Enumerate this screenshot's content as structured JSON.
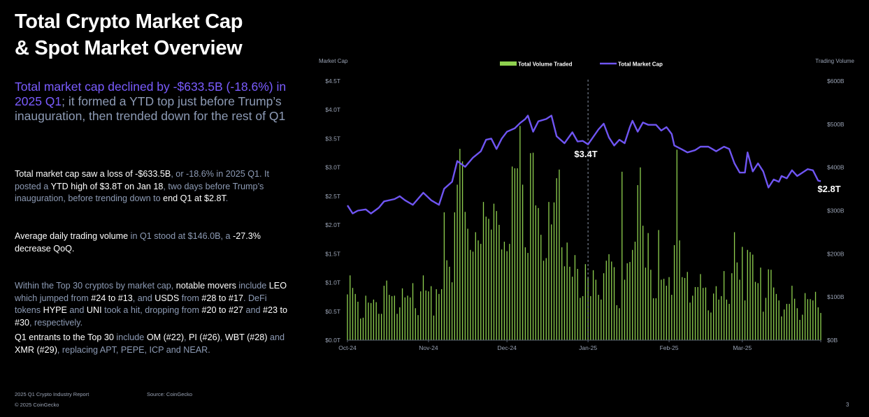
{
  "title_lines": [
    "Total Crypto Market Cap",
    "& Spot Market Overview"
  ],
  "subtitle": [
    {
      "t": "Total market cap declined by -$633.5B (-18.6%) in 2025 Q1",
      "hl": true
    },
    {
      "t": "; it formed a YTD top just before Trump’s inauguration, then trended down for the rest of Q1",
      "hl": false
    }
  ],
  "paragraphs": [
    [
      {
        "t": "Total market cap saw a loss of -$633.5B",
        "hl": true
      },
      {
        "t": ", or -18.6% in 2025 Q1. It posted a ",
        "hl": false
      },
      {
        "t": "YTD high of $3.8T on Jan 18",
        "hl": true
      },
      {
        "t": ", two days before Trump’s inauguration, before trending down to ",
        "hl": false
      },
      {
        "t": "end Q1 at $2.8T",
        "hl": true
      },
      {
        "t": ".",
        "hl": false
      }
    ],
    [
      {
        "t": "Average daily trading volume",
        "hl": true
      },
      {
        "t": " in Q1 stood at $146.0B, a ",
        "hl": false
      },
      {
        "t": "-27.3% decrease QoQ.",
        "hl": true
      }
    ],
    [
      {
        "t": "Within the Top 30 cryptos by market cap, ",
        "hl": false
      },
      {
        "t": "notable movers",
        "hl": true
      },
      {
        "t": " include ",
        "hl": false
      },
      {
        "t": "LEO",
        "hl": true
      },
      {
        "t": " which jumped from ",
        "hl": false
      },
      {
        "t": "#24 to #13",
        "hl": true
      },
      {
        "t": ", and ",
        "hl": false
      },
      {
        "t": "USDS",
        "hl": true
      },
      {
        "t": " from ",
        "hl": false
      },
      {
        "t": "#28 to #17",
        "hl": true
      },
      {
        "t": ". DeFi tokens ",
        "hl": false
      },
      {
        "t": "HYPE",
        "hl": true
      },
      {
        "t": " and ",
        "hl": false
      },
      {
        "t": "UNI",
        "hl": true
      },
      {
        "t": " took a hit, dropping from ",
        "hl": false
      },
      {
        "t": "#20 to #27",
        "hl": true
      },
      {
        "t": " and ",
        "hl": false
      },
      {
        "t": "#23 to #30",
        "hl": true
      },
      {
        "t": ", respectively.",
        "hl": false
      }
    ],
    [
      {
        "t": "Q1 entrants to the Top 30",
        "hl": true
      },
      {
        "t": " include ",
        "hl": false
      },
      {
        "t": "OM (#22)",
        "hl": true
      },
      {
        "t": ", ",
        "hl": false
      },
      {
        "t": "PI (#26)",
        "hl": true
      },
      {
        "t": ", ",
        "hl": false
      },
      {
        "t": "WBT (#28)",
        "hl": true
      },
      {
        "t": " and ",
        "hl": false
      },
      {
        "t": "XMR (#29)",
        "hl": true
      },
      {
        "t": ", replacing APT, PEPE, ICP and NEAR.",
        "hl": false
      }
    ]
  ],
  "footer": {
    "report": "2025 Q1 Crypto Industry Report",
    "source": "Source: CoinGecko",
    "copyright": "© 2025 CoinGecko",
    "page": "3"
  },
  "colors": {
    "background": "#000000",
    "volume": "#8fd14f",
    "market_cap": "#6f55f2",
    "accent_text": "#7a5cff",
    "muted_text": "#8d9bb5"
  },
  "chart_data": {
    "type": "bar+line",
    "y_left_label": "Market Cap",
    "y_right_label": "Trading Volume",
    "y_left_ticks": [
      "$0.0T",
      "$0.5T",
      "$1.0T",
      "$1.5T",
      "$2.0T",
      "$2.5T",
      "$3.0T",
      "$3.5T",
      "$4.0T",
      "$4.5T"
    ],
    "y_right_ticks": [
      "$0B",
      "$100B",
      "$200B",
      "$300B",
      "$400B",
      "$500B",
      "$600B"
    ],
    "ylim_left": [
      0,
      4.5
    ],
    "ylim_right": [
      0,
      600
    ],
    "x_ticks": [
      {
        "label": "Oct-24",
        "date": "2024-10-01"
      },
      {
        "label": "Nov-24",
        "date": "2024-11-01"
      },
      {
        "label": "Dec-24",
        "date": "2024-12-01"
      },
      {
        "label": "Jan-25",
        "date": "2025-01-01"
      },
      {
        "label": "Feb-25",
        "date": "2025-02-01"
      },
      {
        "label": "Mar-25",
        "date": "2025-03-01"
      }
    ],
    "x_range": [
      "2024-10-01",
      "2025-03-31"
    ],
    "legend": [
      "Total Volume Traded",
      "Total Market Cap"
    ],
    "legend_position": "top-center",
    "grid": false,
    "reference_line": {
      "date": "2025-01-01",
      "style": "dashed"
    },
    "annotations": [
      {
        "text": "$3.4T",
        "date": "2025-01-01",
        "value": 3.4
      },
      {
        "text": "$2.8T",
        "date": "2025-03-31",
        "value": 2.76
      }
    ],
    "series": [
      {
        "name": "Total Volume Traded",
        "axis": "right",
        "kind": "bar",
        "unit": "B USD",
        "start_date": "2024-10-01",
        "values": [
          106,
          150,
          121,
          107,
          89,
          50,
          52,
          103,
          87,
          86,
          94,
          88,
          61,
          61,
          126,
          138,
          105,
          102,
          103,
          61,
          76,
          120,
          99,
          103,
          99,
          132,
          74,
          58,
          113,
          150,
          115,
          113,
          125,
          57,
          118,
          107,
          118,
          296,
          185,
          170,
          134,
          296,
          360,
          443,
          414,
          297,
          258,
          209,
          205,
          250,
          231,
          223,
          320,
          286,
          281,
          256,
          316,
          299,
          267,
          210,
          228,
          206,
          223,
          402,
          398,
          398,
          496,
          360,
          215,
          202,
          433,
          434,
          312,
          306,
          244,
          184,
          190,
          320,
          268,
          319,
          375,
          395,
          215,
          171,
          226,
          170,
          147,
          197,
          165,
          98,
          102,
          176,
          145,
          102,
          162,
          140,
          105,
          94,
          155,
          184,
          199,
          182,
          169,
          81,
          74,
          390,
          140,
          178,
          181,
          209,
          228,
          359,
          400,
          265,
          168,
          248,
          163,
          97,
          97,
          255,
          140,
          142,
          126,
          146,
          105,
          220,
          441,
          231,
          146,
          144,
          158,
          87,
          103,
          123,
          123,
          153,
          121,
          122,
          69,
          64,
          108,
          125,
          94,
          102,
          160,
          94,
          84,
          155,
          250,
          180,
          140,
          216,
          92,
          209,
          204,
          198,
          135,
          132,
          168,
          66,
          98,
          164,
          163,
          122,
          107,
          92,
          55,
          71,
          84,
          84,
          126,
          96,
          74,
          47,
          59,
          109,
          95,
          95,
          92,
          112,
          76,
          63
        ]
      },
      {
        "name": "Total Market Cap",
        "axis": "left",
        "kind": "line",
        "unit": "T USD",
        "points": [
          [
            "2024-10-01",
            2.34
          ],
          [
            "2024-10-03",
            2.2
          ],
          [
            "2024-10-05",
            2.25
          ],
          [
            "2024-10-08",
            2.27
          ],
          [
            "2024-10-10",
            2.2
          ],
          [
            "2024-10-13",
            2.3
          ],
          [
            "2024-10-15",
            2.41
          ],
          [
            "2024-10-19",
            2.45
          ],
          [
            "2024-10-21",
            2.5
          ],
          [
            "2024-10-23",
            2.43
          ],
          [
            "2024-10-26",
            2.35
          ],
          [
            "2024-10-30",
            2.56
          ],
          [
            "2024-11-02",
            2.43
          ],
          [
            "2024-11-05",
            2.35
          ],
          [
            "2024-11-07",
            2.63
          ],
          [
            "2024-11-10",
            2.75
          ],
          [
            "2024-11-12",
            3.11
          ],
          [
            "2024-11-15",
            3.01
          ],
          [
            "2024-11-18",
            3.17
          ],
          [
            "2024-11-21",
            3.28
          ],
          [
            "2024-11-23",
            3.48
          ],
          [
            "2024-11-25",
            3.5
          ],
          [
            "2024-11-27",
            3.32
          ],
          [
            "2024-11-29",
            3.5
          ],
          [
            "2024-12-01",
            3.62
          ],
          [
            "2024-12-04",
            3.68
          ],
          [
            "2024-12-06",
            3.77
          ],
          [
            "2024-12-08",
            3.84
          ],
          [
            "2024-12-09",
            3.9
          ],
          [
            "2024-12-11",
            3.62
          ],
          [
            "2024-12-13",
            3.8
          ],
          [
            "2024-12-16",
            3.84
          ],
          [
            "2024-12-18",
            3.9
          ],
          [
            "2024-12-20",
            3.54
          ],
          [
            "2024-12-23",
            3.42
          ],
          [
            "2024-12-26",
            3.61
          ],
          [
            "2024-12-28",
            3.45
          ],
          [
            "2024-12-30",
            3.46
          ],
          [
            "2025-01-01",
            3.4
          ],
          [
            "2025-01-05",
            3.66
          ],
          [
            "2025-01-07",
            3.76
          ],
          [
            "2025-01-09",
            3.52
          ],
          [
            "2025-01-11",
            3.38
          ],
          [
            "2025-01-13",
            3.48
          ],
          [
            "2025-01-15",
            3.42
          ],
          [
            "2025-01-17",
            3.7
          ],
          [
            "2025-01-18",
            3.81
          ],
          [
            "2025-01-20",
            3.62
          ],
          [
            "2025-01-22",
            3.78
          ],
          [
            "2025-01-24",
            3.74
          ],
          [
            "2025-01-27",
            3.74
          ],
          [
            "2025-01-29",
            3.64
          ],
          [
            "2025-01-31",
            3.7
          ],
          [
            "2025-02-02",
            3.58
          ],
          [
            "2025-02-03",
            3.38
          ],
          [
            "2025-02-06",
            3.31
          ],
          [
            "2025-02-08",
            3.26
          ],
          [
            "2025-02-11",
            3.3
          ],
          [
            "2025-02-13",
            3.36
          ],
          [
            "2025-02-16",
            3.36
          ],
          [
            "2025-02-19",
            3.28
          ],
          [
            "2025-02-22",
            3.36
          ],
          [
            "2025-02-24",
            3.32
          ],
          [
            "2025-02-26",
            3.07
          ],
          [
            "2025-02-28",
            2.91
          ],
          [
            "2025-03-02",
            2.91
          ],
          [
            "2025-03-03",
            3.26
          ],
          [
            "2025-03-05",
            2.93
          ],
          [
            "2025-03-07",
            3.07
          ],
          [
            "2025-03-09",
            2.93
          ],
          [
            "2025-03-11",
            2.65
          ],
          [
            "2025-03-13",
            2.79
          ],
          [
            "2025-03-15",
            2.75
          ],
          [
            "2025-03-16",
            2.85
          ],
          [
            "2025-03-18",
            2.81
          ],
          [
            "2025-03-20",
            2.95
          ],
          [
            "2025-03-22",
            2.85
          ],
          [
            "2025-03-26",
            2.97
          ],
          [
            "2025-03-28",
            2.95
          ],
          [
            "2025-03-30",
            2.77
          ],
          [
            "2025-03-31",
            2.76
          ]
        ]
      }
    ]
  }
}
